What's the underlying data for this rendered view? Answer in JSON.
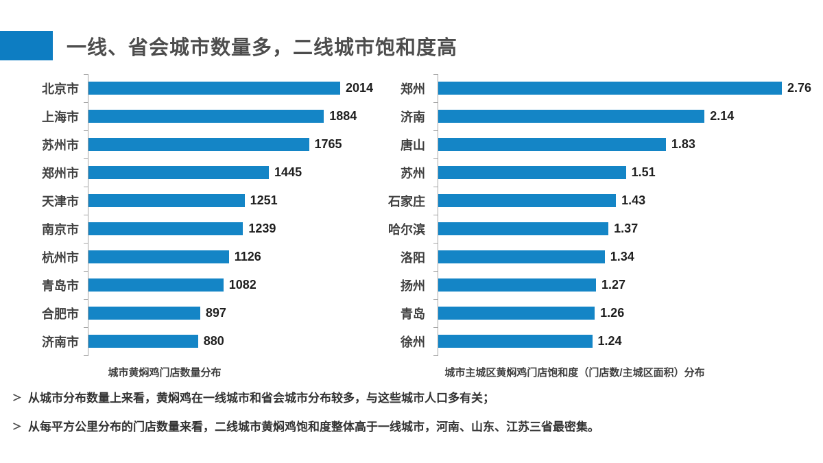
{
  "header": {
    "title": "一线、省会城市数量多，二线城市饱和度高"
  },
  "colors": {
    "accent": "#0d7dc2",
    "bar": "#1485c6"
  },
  "chart_data": [
    {
      "type": "bar",
      "orientation": "horizontal",
      "title": "城市黄焖鸡门店数量分布",
      "categories": [
        "北京市",
        "上海市",
        "苏州市",
        "郑州市",
        "天津市",
        "南京市",
        "杭州市",
        "青岛市",
        "合肥市",
        "济南市"
      ],
      "values": [
        2014,
        1884,
        1765,
        1445,
        1251,
        1239,
        1126,
        1082,
        897,
        880
      ],
      "xlim": [
        0,
        2100
      ],
      "value_labels": "outside-end",
      "grid": false,
      "legend": "none"
    },
    {
      "type": "bar",
      "orientation": "horizontal",
      "title": "城市主城区黄焖鸡门店饱和度（门店数/主城区面积）分布",
      "categories": [
        "郑州",
        "济南",
        "唐山",
        "苏州",
        "石家庄",
        "哈尔滨",
        "洛阳",
        "扬州",
        "青岛",
        "徐州"
      ],
      "values": [
        2.76,
        2.14,
        1.83,
        1.51,
        1.43,
        1.37,
        1.34,
        1.27,
        1.26,
        1.24
      ],
      "xlim": [
        0,
        2.9
      ],
      "value_labels": "outside-end",
      "grid": false,
      "legend": "none"
    }
  ],
  "bullets": [
    "从城市分布数量上来看，黄焖鸡在一线城市和省会城市分布较多，与这些城市人口多有关；",
    "从每平方公里分布的门店数量来看，二线城市黄焖鸡饱和度整体高于一线城市，河南、山东、江苏三省最密集。"
  ]
}
